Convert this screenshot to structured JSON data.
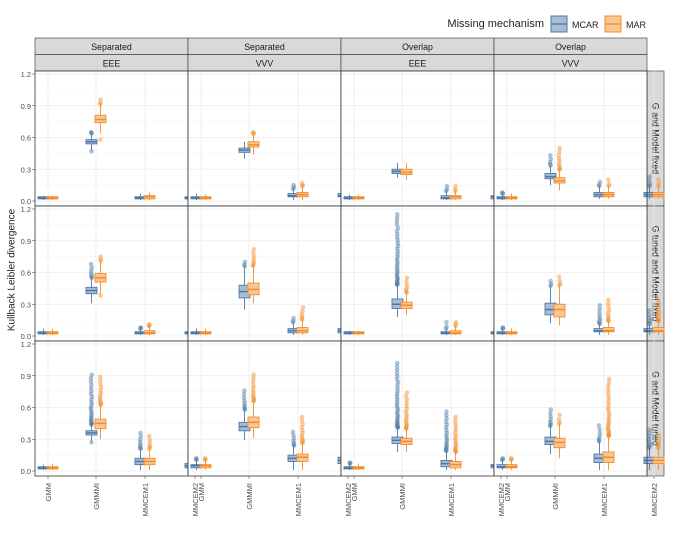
{
  "colors": {
    "MCAR": "#4e79a7",
    "MAR": "#f28e2b",
    "MCAR_fill": "#a8bcd4",
    "MAR_fill": "#f9c795",
    "strip_fill": "#d9d9d9",
    "panel_border": "#333333",
    "grid": "#ebebeb"
  },
  "legend": {
    "title": "Missing mechanism",
    "items": [
      {
        "label": "MCAR",
        "key": "MCAR"
      },
      {
        "label": "MAR",
        "key": "MAR"
      }
    ],
    "placement": "top-right"
  },
  "chart_data": {
    "type": "boxplot",
    "ylabel": "Kullback Leibler divergence",
    "xlabel": "",
    "ylim": [
      0,
      1.2
    ],
    "yticks": [
      "0.0",
      "0.3",
      "0.6",
      "0.9",
      "1.2"
    ],
    "grid": true,
    "categories": [
      "GMM",
      "GMMMI",
      "MMCEM1",
      "MMCEM2"
    ],
    "columns": [
      {
        "top": "Separated",
        "bottom": "EEE"
      },
      {
        "top": "Separated",
        "bottom": "VVV"
      },
      {
        "top": "Overlap",
        "bottom": "EEE"
      },
      {
        "top": "Overlap",
        "bottom": "VVV"
      }
    ],
    "rows": [
      "G and Model fixed",
      "G tuned and Model fixed",
      "G and Model tuned"
    ],
    "series": [
      {
        "name": "MCAR"
      },
      {
        "name": "MAR"
      }
    ],
    "panels": [
      [
        {
          "MCAR": [
            [
              0.01,
              0.02,
              0.03,
              0.04,
              0.05
            ],
            [
              0.47,
              0.54,
              0.56,
              0.58,
              0.65
            ],
            [
              0.01,
              0.02,
              0.03,
              0.04,
              0.07
            ],
            [
              0.01,
              0.02,
              0.03,
              0.04,
              0.07
            ]
          ],
          "MAR": [
            [
              0.01,
              0.02,
              0.03,
              0.04,
              0.05
            ],
            [
              0.58,
              0.74,
              0.77,
              0.81,
              0.96
            ],
            [
              0.01,
              0.02,
              0.04,
              0.05,
              0.08
            ],
            [
              0.01,
              0.02,
              0.04,
              0.05,
              0.08
            ]
          ]
        },
        {
          "MCAR": [
            [
              0.01,
              0.02,
              0.03,
              0.04,
              0.07
            ],
            [
              0.4,
              0.46,
              0.48,
              0.5,
              0.56
            ],
            [
              0.01,
              0.04,
              0.05,
              0.07,
              0.15
            ],
            [
              0.01,
              0.04,
              0.05,
              0.07,
              0.15
            ]
          ],
          "MAR": [
            [
              0.01,
              0.02,
              0.03,
              0.04,
              0.06
            ],
            [
              0.44,
              0.51,
              0.53,
              0.56,
              0.65
            ],
            [
              0.01,
              0.04,
              0.06,
              0.08,
              0.17
            ],
            [
              0.01,
              0.04,
              0.06,
              0.08,
              0.17
            ]
          ]
        },
        {
          "MCAR": [
            [
              0.01,
              0.02,
              0.03,
              0.04,
              0.06
            ],
            [
              0.22,
              0.26,
              0.28,
              0.3,
              0.36
            ],
            [
              0.01,
              0.02,
              0.03,
              0.05,
              0.14
            ],
            [
              0.01,
              0.02,
              0.04,
              0.05,
              0.15
            ]
          ],
          "MAR": [
            [
              0.01,
              0.02,
              0.03,
              0.04,
              0.06
            ],
            [
              0.2,
              0.25,
              0.27,
              0.3,
              0.36
            ],
            [
              0.01,
              0.02,
              0.04,
              0.05,
              0.14
            ],
            [
              0.01,
              0.02,
              0.04,
              0.05,
              0.16
            ]
          ]
        },
        {
          "MCAR": [
            [
              0.01,
              0.02,
              0.03,
              0.04,
              0.08
            ],
            [
              0.15,
              0.21,
              0.23,
              0.26,
              0.43
            ],
            [
              0.02,
              0.04,
              0.06,
              0.08,
              0.18
            ],
            [
              0.02,
              0.04,
              0.06,
              0.08,
              0.23
            ]
          ],
          "MAR": [
            [
              0.01,
              0.02,
              0.03,
              0.04,
              0.07
            ],
            [
              0.1,
              0.17,
              0.19,
              0.22,
              0.5
            ],
            [
              0.02,
              0.04,
              0.06,
              0.08,
              0.2
            ],
            [
              0.02,
              0.04,
              0.06,
              0.08,
              0.2
            ]
          ]
        }
      ],
      [
        {
          "MCAR": [
            [
              0.01,
              0.02,
              0.03,
              0.04,
              0.07
            ],
            [
              0.31,
              0.4,
              0.43,
              0.46,
              0.68
            ],
            [
              0.01,
              0.02,
              0.03,
              0.04,
              0.08
            ],
            [
              0.01,
              0.02,
              0.03,
              0.04,
              0.08
            ]
          ],
          "MAR": [
            [
              0.01,
              0.02,
              0.03,
              0.04,
              0.07
            ],
            [
              0.38,
              0.51,
              0.55,
              0.59,
              0.75
            ],
            [
              0.01,
              0.02,
              0.03,
              0.05,
              0.11
            ],
            [
              0.01,
              0.02,
              0.03,
              0.05,
              0.11
            ]
          ]
        },
        {
          "MCAR": [
            [
              0.01,
              0.02,
              0.03,
              0.04,
              0.07
            ],
            [
              0.25,
              0.36,
              0.42,
              0.48,
              0.7
            ],
            [
              0.01,
              0.03,
              0.05,
              0.07,
              0.17
            ],
            [
              0.01,
              0.03,
              0.05,
              0.07,
              0.34
            ]
          ],
          "MAR": [
            [
              0.01,
              0.02,
              0.03,
              0.04,
              0.07
            ],
            [
              0.31,
              0.39,
              0.44,
              0.5,
              0.82
            ],
            [
              0.01,
              0.03,
              0.05,
              0.08,
              0.27
            ],
            [
              0.01,
              0.03,
              0.05,
              0.08,
              0.17
            ]
          ]
        },
        {
          "MCAR": [
            [
              0.01,
              0.02,
              0.03,
              0.04,
              0.05
            ],
            [
              0.18,
              0.26,
              0.3,
              0.35,
              1.15
            ],
            [
              0.01,
              0.02,
              0.03,
              0.04,
              0.13
            ],
            [
              0.01,
              0.02,
              0.03,
              0.04,
              0.13
            ]
          ],
          "MAR": [
            [
              0.01,
              0.02,
              0.03,
              0.04,
              0.05
            ],
            [
              0.2,
              0.26,
              0.29,
              0.32,
              0.55
            ],
            [
              0.01,
              0.02,
              0.03,
              0.05,
              0.13
            ],
            [
              0.01,
              0.02,
              0.03,
              0.05,
              0.13
            ]
          ]
        },
        {
          "MCAR": [
            [
              0.01,
              0.02,
              0.03,
              0.04,
              0.08
            ],
            [
              0.12,
              0.2,
              0.25,
              0.31,
              0.52
            ],
            [
              0.01,
              0.04,
              0.05,
              0.07,
              0.29
            ],
            [
              0.01,
              0.04,
              0.05,
              0.07,
              0.24
            ]
          ],
          "MAR": [
            [
              0.01,
              0.02,
              0.03,
              0.04,
              0.07
            ],
            [
              0.1,
              0.18,
              0.25,
              0.3,
              0.56
            ],
            [
              0.01,
              0.04,
              0.05,
              0.08,
              0.34
            ],
            [
              0.01,
              0.04,
              0.05,
              0.08,
              0.34
            ]
          ]
        }
      ],
      [
        {
          "MCAR": [
            [
              0.01,
              0.02,
              0.03,
              0.04,
              0.06
            ],
            [
              0.27,
              0.34,
              0.36,
              0.38,
              0.91
            ],
            [
              0.01,
              0.06,
              0.09,
              0.12,
              0.36
            ],
            [
              0.01,
              0.03,
              0.05,
              0.07,
              0.21
            ]
          ],
          "MAR": [
            [
              0.01,
              0.02,
              0.03,
              0.04,
              0.07
            ],
            [
              0.3,
              0.4,
              0.45,
              0.49,
              0.89
            ],
            [
              0.01,
              0.06,
              0.09,
              0.12,
              0.33
            ],
            [
              0.01,
              0.03,
              0.05,
              0.07,
              0.28
            ]
          ]
        },
        {
          "MCAR": [
            [
              0.01,
              0.03,
              0.05,
              0.06,
              0.12
            ],
            [
              0.29,
              0.38,
              0.42,
              0.46,
              0.76
            ],
            [
              0.01,
              0.09,
              0.12,
              0.15,
              0.37
            ],
            [
              0.01,
              0.07,
              0.1,
              0.13,
              0.26
            ]
          ],
          "MAR": [
            [
              0.01,
              0.03,
              0.05,
              0.06,
              0.12
            ],
            [
              0.31,
              0.41,
              0.46,
              0.51,
              0.91
            ],
            [
              0.01,
              0.09,
              0.13,
              0.16,
              0.51
            ],
            [
              0.01,
              0.07,
              0.1,
              0.13,
              0.36
            ]
          ]
        },
        {
          "MCAR": [
            [
              0.01,
              0.02,
              0.03,
              0.04,
              0.08
            ],
            [
              0.18,
              0.26,
              0.29,
              0.32,
              1.02
            ],
            [
              0.01,
              0.04,
              0.07,
              0.1,
              0.56
            ],
            [
              0.01,
              0.03,
              0.05,
              0.06,
              0.37
            ]
          ],
          "MAR": [
            [
              0.01,
              0.02,
              0.03,
              0.04,
              0.07
            ],
            [
              0.18,
              0.25,
              0.28,
              0.31,
              0.74
            ],
            [
              0.01,
              0.03,
              0.06,
              0.09,
              0.51
            ],
            [
              0.01,
              0.03,
              0.05,
              0.06,
              0.22
            ]
          ]
        },
        {
          "MCAR": [
            [
              0.01,
              0.03,
              0.04,
              0.06,
              0.12
            ],
            [
              0.16,
              0.25,
              0.28,
              0.32,
              0.58
            ],
            [
              0.01,
              0.08,
              0.12,
              0.16,
              0.43
            ],
            [
              0.01,
              0.07,
              0.1,
              0.13,
              0.39
            ]
          ],
          "MAR": [
            [
              0.01,
              0.03,
              0.04,
              0.06,
              0.12
            ],
            [
              0.12,
              0.22,
              0.27,
              0.31,
              0.53
            ],
            [
              0.01,
              0.08,
              0.13,
              0.18,
              0.87
            ],
            [
              0.01,
              0.07,
              0.1,
              0.13,
              0.34
            ]
          ]
        }
      ]
    ]
  }
}
